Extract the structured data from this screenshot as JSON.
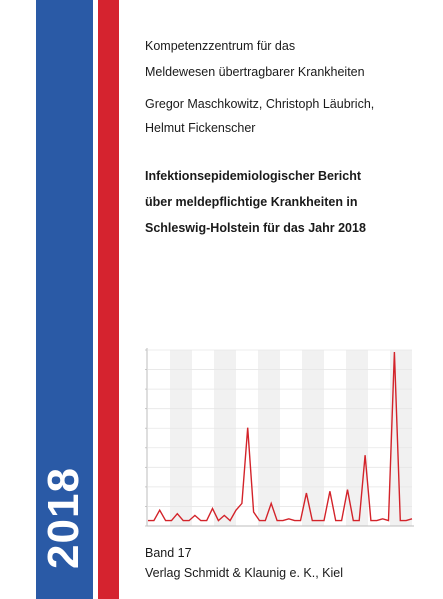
{
  "cover": {
    "year": "2018",
    "institution_line1": "Kompetenzzentrum für das",
    "institution_line2": "Meldewesen übertragbarer Krankheiten",
    "authors_line1": "Gregor Maschkowitz, Christoph Läubrich,",
    "authors_line2": "Helmut Fickenscher",
    "title_line1": "Infektionsepidemiologischer Bericht",
    "title_line2": "über meldepflichtige Krankheiten in",
    "title_line3": "Schleswig-Holstein für das Jahr 2018",
    "band": "Band 17",
    "publisher": "Verlag Schmidt & Klaunig e. K., Kiel"
  },
  "colors": {
    "blue_bar": "#2a5aa6",
    "red_bar": "#d5232f",
    "chart_line": "#d3232a",
    "chart_band": "#f1f1f1"
  },
  "chart_data": {
    "type": "line",
    "series": [
      {
        "values": [
          0.02,
          0.02,
          0.08,
          0.02,
          0.02,
          0.06,
          0.02,
          0.02,
          0.05,
          0.02,
          0.02,
          0.09,
          0.02,
          0.05,
          0.02,
          0.08,
          0.12,
          0.56,
          0.07,
          0.02,
          0.02,
          0.12,
          0.02,
          0.02,
          0.03,
          0.02,
          0.02,
          0.18,
          0.02,
          0.02,
          0.02,
          0.19,
          0.02,
          0.02,
          0.2,
          0.02,
          0.02,
          0.4,
          0.02,
          0.02,
          0.03,
          0.02,
          1.0,
          0.02,
          0.02,
          0.03
        ]
      }
    ],
    "grid": true,
    "ylim": [
      0,
      1
    ]
  }
}
